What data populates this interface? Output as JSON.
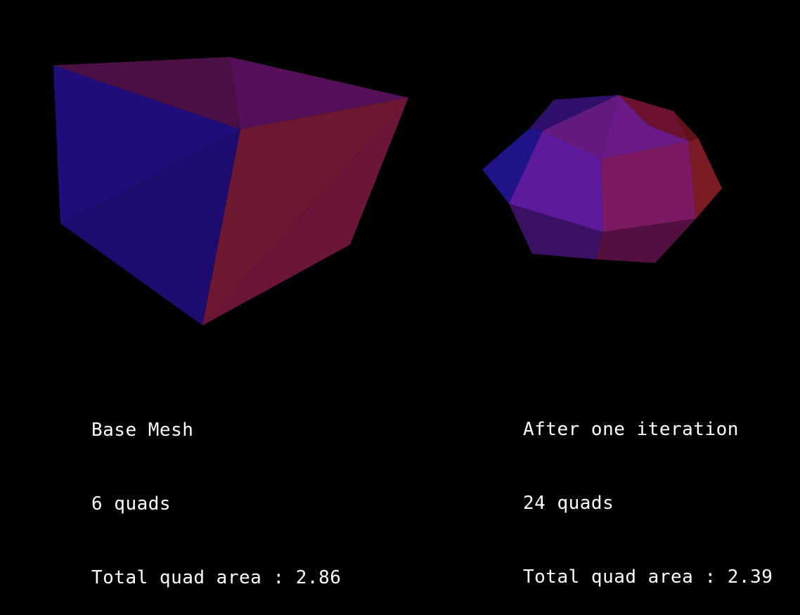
{
  "base_mesh": {
    "title": "Base Mesh",
    "quad_count": "6 quads",
    "area_text": "Total quad area : 2.86"
  },
  "iterated_mesh": {
    "title": "After one iteration",
    "quad_count": "24 quads",
    "area_text": "Total quad area : 2.39"
  },
  "colors": {
    "background": "#000000",
    "text": "#ffffff",
    "blue_face": "#1f0b74",
    "red_face": "#6f1731",
    "purple_top": "#4c1150",
    "violet_face": "#5a1698",
    "magenta_face": "#7a1a5e",
    "dark_red_face": "#7a1620"
  }
}
